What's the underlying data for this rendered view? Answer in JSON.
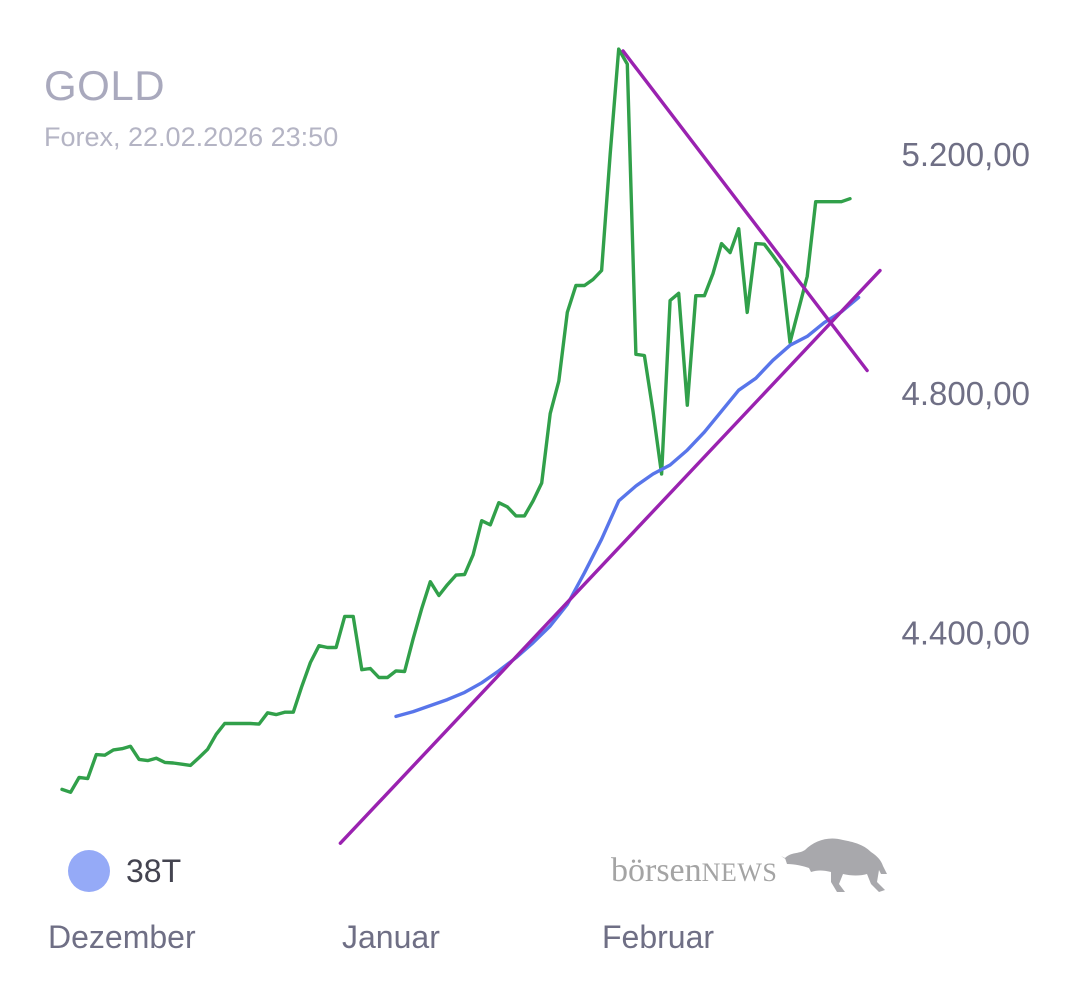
{
  "header": {
    "title": "GOLD",
    "subtitle": "Forex, 22.02.2026 23:50"
  },
  "legend": {
    "label": "38T",
    "color": "#95aaf7"
  },
  "brand": {
    "part1": "börsen",
    "part2": "NEWS",
    "icon": "bull-icon"
  },
  "colors": {
    "price": "#31a04a",
    "average": "#5875ea",
    "trendlines": "#9a22b0",
    "axis_text": "#6f6f85"
  },
  "chart_data": {
    "type": "line",
    "x_tick_labels": [
      "Dezember",
      "Januar",
      "Februar"
    ],
    "y_tick_values": [
      4400,
      4800,
      5200
    ],
    "y_tick_labels": [
      "4.400,00",
      "4.800,00",
      "5.200,00"
    ],
    "ylim": [
      4040,
      5290
    ],
    "xlim": [
      0,
      100
    ],
    "grid": false,
    "series": [
      {
        "name": "GOLD",
        "role": "price",
        "points": [
          [
            0,
            4138
          ],
          [
            1,
            4133
          ],
          [
            2,
            4158
          ],
          [
            3,
            4156
          ],
          [
            4,
            4196
          ],
          [
            5,
            4195
          ],
          [
            6,
            4204
          ],
          [
            7,
            4206
          ],
          [
            8,
            4210
          ],
          [
            9,
            4188
          ],
          [
            10,
            4186
          ],
          [
            11,
            4190
          ],
          [
            12,
            4183
          ],
          [
            13,
            4182
          ],
          [
            14,
            4180
          ],
          [
            15,
            4178
          ],
          [
            16,
            4191
          ],
          [
            17,
            4205
          ],
          [
            18,
            4230
          ],
          [
            19,
            4248
          ],
          [
            20,
            4248
          ],
          [
            21,
            4248
          ],
          [
            22,
            4248
          ],
          [
            23,
            4247
          ],
          [
            24,
            4266
          ],
          [
            25,
            4263
          ],
          [
            26,
            4267
          ],
          [
            27,
            4267
          ],
          [
            28,
            4310
          ],
          [
            29,
            4350
          ],
          [
            30,
            4378
          ],
          [
            31,
            4375
          ],
          [
            32,
            4375
          ],
          [
            33,
            4427
          ],
          [
            34,
            4427
          ],
          [
            35,
            4338
          ],
          [
            36,
            4340
          ],
          [
            37,
            4325
          ],
          [
            38,
            4325
          ],
          [
            39,
            4336
          ],
          [
            40,
            4335
          ],
          [
            41,
            4390
          ],
          [
            42,
            4440
          ],
          [
            43,
            4485
          ],
          [
            44,
            4462
          ],
          [
            45,
            4480
          ],
          [
            46,
            4496
          ],
          [
            47,
            4497
          ],
          [
            48,
            4530
          ],
          [
            49,
            4587
          ],
          [
            50,
            4580
          ],
          [
            51,
            4617
          ],
          [
            52,
            4610
          ],
          [
            53,
            4595
          ],
          [
            54,
            4595
          ],
          [
            55,
            4620
          ],
          [
            56,
            4650
          ],
          [
            57,
            4766
          ],
          [
            58,
            4820
          ],
          [
            59,
            4935
          ],
          [
            60,
            4980
          ],
          [
            61,
            4980
          ],
          [
            62,
            4990
          ],
          [
            63,
            5005
          ],
          [
            64,
            5200
          ],
          [
            65,
            5375
          ],
          [
            66,
            5350
          ],
          [
            67,
            4865
          ],
          [
            68,
            4863
          ],
          [
            69,
            4770
          ],
          [
            70,
            4665
          ],
          [
            71,
            4955
          ],
          [
            72,
            4967
          ],
          [
            73,
            4780
          ],
          [
            74,
            4963
          ],
          [
            75,
            4963
          ],
          [
            76,
            5000
          ],
          [
            77,
            5050
          ],
          [
            78,
            5035
          ],
          [
            79,
            5075
          ],
          [
            80,
            4935
          ],
          [
            81,
            5050
          ],
          [
            82,
            5049
          ],
          [
            83,
            5030
          ],
          [
            84,
            5010
          ],
          [
            85,
            4885
          ],
          [
            86,
            4940
          ],
          [
            87,
            4995
          ],
          [
            88,
            5120
          ],
          [
            89,
            5120
          ],
          [
            90,
            5120
          ],
          [
            91,
            5120
          ],
          [
            92,
            5125
          ]
        ]
      },
      {
        "name": "38T",
        "role": "moving-average",
        "points": [
          [
            39,
            4260
          ],
          [
            41,
            4268
          ],
          [
            43,
            4278
          ],
          [
            45,
            4288
          ],
          [
            47,
            4300
          ],
          [
            49,
            4316
          ],
          [
            51,
            4336
          ],
          [
            53,
            4358
          ],
          [
            55,
            4383
          ],
          [
            57,
            4411
          ],
          [
            59,
            4447
          ],
          [
            61,
            4500
          ],
          [
            63,
            4556
          ],
          [
            65,
            4620
          ],
          [
            67,
            4645
          ],
          [
            69,
            4665
          ],
          [
            71,
            4680
          ],
          [
            73,
            4705
          ],
          [
            75,
            4735
          ],
          [
            77,
            4770
          ],
          [
            79,
            4805
          ],
          [
            81,
            4825
          ],
          [
            83,
            4855
          ],
          [
            85,
            4880
          ],
          [
            87,
            4895
          ],
          [
            89,
            4918
          ],
          [
            91,
            4936
          ],
          [
            93,
            4960
          ]
        ]
      }
    ],
    "trendlines": [
      {
        "from": [
          32.5,
          4048
        ],
        "to": [
          95.5,
          5005
        ]
      },
      {
        "from": [
          65.5,
          5372
        ],
        "to": [
          94,
          4838
        ]
      }
    ]
  }
}
